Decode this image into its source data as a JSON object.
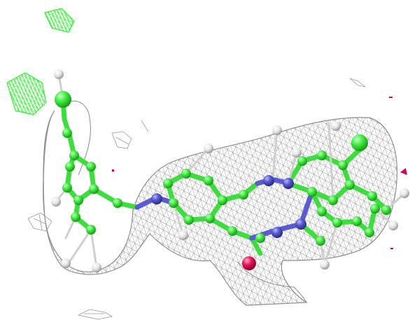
{
  "scene": {
    "background": "#ffffff",
    "colors": {
      "density_mesh": "#8a8a8a",
      "positive_difference_density": "#33ff33",
      "negative_difference_density": "#cc0066",
      "carbon": "#44ee44",
      "nitrogen": "#5a5ad2",
      "oxygen": "#e8185a",
      "hydrogen": "#e6e6e6"
    },
    "icons": [
      "electron-density-mesh",
      "ligand-model",
      "difference-density"
    ]
  }
}
